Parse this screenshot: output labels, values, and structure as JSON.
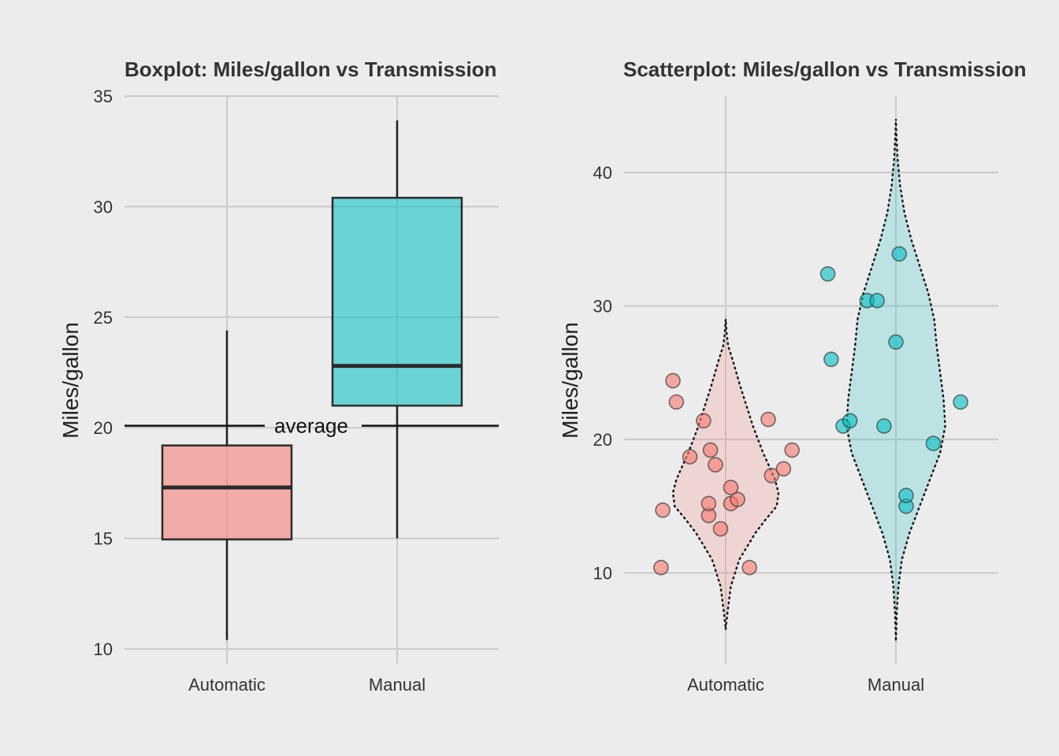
{
  "colors": {
    "background": "#ECECEC",
    "grid": "#CCCCCC",
    "automatic": "#F8766D",
    "manual": "#00BFC4"
  },
  "chart_data": [
    {
      "type": "box",
      "title": "Boxplot: Miles/gallon vs Transmission",
      "xlabel": "",
      "ylabel": "Miles/gallon",
      "categories": [
        "Automatic",
        "Manual"
      ],
      "ylim": [
        10,
        35
      ],
      "yticks": [
        10,
        15,
        20,
        25,
        30,
        35
      ],
      "boxes": [
        {
          "category": "Automatic",
          "min": 10.4,
          "q1": 14.95,
          "median": 17.3,
          "q3": 19.2,
          "max": 24.4,
          "color": "#F8766D"
        },
        {
          "category": "Manual",
          "min": 15.0,
          "q1": 21.0,
          "median": 22.8,
          "q3": 30.4,
          "max": 33.9,
          "color": "#00BFC4"
        }
      ],
      "hline": {
        "value": 20.09,
        "label": "average"
      },
      "grid": true,
      "legend": "none"
    },
    {
      "type": "violin-scatter",
      "title": "Scatterplot: Miles/gallon vs Transmission",
      "xlabel": "",
      "ylabel": "Miles/gallon",
      "categories": [
        "Automatic",
        "Manual"
      ],
      "ylim": [
        5,
        44
      ],
      "yticks": [
        10,
        20,
        30,
        40
      ],
      "violins": [
        {
          "category": "Automatic",
          "color": "#F8766D",
          "profile": [
            [
              5.8,
              0.0
            ],
            [
              7,
              0.02
            ],
            [
              9,
              0.06
            ],
            [
              11,
              0.16
            ],
            [
              13,
              0.35
            ],
            [
              14,
              0.47
            ],
            [
              15,
              0.6
            ],
            [
              16,
              0.62
            ],
            [
              17,
              0.58
            ],
            [
              18,
              0.51
            ],
            [
              19,
              0.44
            ],
            [
              20,
              0.38
            ],
            [
              21,
              0.32
            ],
            [
              22,
              0.27
            ],
            [
              24,
              0.17
            ],
            [
              26,
              0.08
            ],
            [
              27,
              0.03
            ],
            [
              28,
              0.01
            ],
            [
              29,
              0.0
            ]
          ]
        },
        {
          "category": "Manual",
          "color": "#00BFC4",
          "profile": [
            [
              5,
              0.0
            ],
            [
              7,
              0.01
            ],
            [
              9,
              0.03
            ],
            [
              11,
              0.07
            ],
            [
              13,
              0.16
            ],
            [
              15,
              0.28
            ],
            [
              17,
              0.4
            ],
            [
              19,
              0.52
            ],
            [
              21,
              0.58
            ],
            [
              23,
              0.56
            ],
            [
              25,
              0.52
            ],
            [
              27,
              0.48
            ],
            [
              29,
              0.45
            ],
            [
              31,
              0.38
            ],
            [
              33,
              0.28
            ],
            [
              35,
              0.18
            ],
            [
              37,
              0.1
            ],
            [
              39,
              0.05
            ],
            [
              41,
              0.02
            ],
            [
              43,
              0.005
            ],
            [
              44,
              0.0
            ]
          ]
        }
      ],
      "points": [
        {
          "category": "Automatic",
          "jitter": -0.38,
          "y": 10.4
        },
        {
          "category": "Automatic",
          "jitter": 0.14,
          "y": 10.4
        },
        {
          "category": "Automatic",
          "jitter": -0.03,
          "y": 13.3
        },
        {
          "category": "Automatic",
          "jitter": -0.1,
          "y": 14.3
        },
        {
          "category": "Automatic",
          "jitter": -0.37,
          "y": 14.7
        },
        {
          "category": "Automatic",
          "jitter": -0.1,
          "y": 15.2
        },
        {
          "category": "Automatic",
          "jitter": 0.03,
          "y": 15.2
        },
        {
          "category": "Automatic",
          "jitter": 0.07,
          "y": 15.5
        },
        {
          "category": "Automatic",
          "jitter": 0.03,
          "y": 16.4
        },
        {
          "category": "Automatic",
          "jitter": 0.27,
          "y": 17.3
        },
        {
          "category": "Automatic",
          "jitter": 0.34,
          "y": 17.8
        },
        {
          "category": "Automatic",
          "jitter": -0.06,
          "y": 18.1
        },
        {
          "category": "Automatic",
          "jitter": -0.21,
          "y": 18.7
        },
        {
          "category": "Automatic",
          "jitter": -0.09,
          "y": 19.2
        },
        {
          "category": "Automatic",
          "jitter": 0.39,
          "y": 19.2
        },
        {
          "category": "Automatic",
          "jitter": -0.13,
          "y": 21.4
        },
        {
          "category": "Automatic",
          "jitter": 0.25,
          "y": 21.5
        },
        {
          "category": "Automatic",
          "jitter": -0.29,
          "y": 22.8
        },
        {
          "category": "Automatic",
          "jitter": -0.31,
          "y": 24.4
        },
        {
          "category": "Manual",
          "jitter": 0.06,
          "y": 15.0
        },
        {
          "category": "Manual",
          "jitter": 0.06,
          "y": 15.8
        },
        {
          "category": "Manual",
          "jitter": 0.22,
          "y": 19.7
        },
        {
          "category": "Manual",
          "jitter": -0.31,
          "y": 21.0
        },
        {
          "category": "Manual",
          "jitter": -0.07,
          "y": 21.0
        },
        {
          "category": "Manual",
          "jitter": -0.27,
          "y": 21.4
        },
        {
          "category": "Manual",
          "jitter": 0.38,
          "y": 22.8
        },
        {
          "category": "Manual",
          "jitter": -0.38,
          "y": 26.0
        },
        {
          "category": "Manual",
          "jitter": 0.0,
          "y": 27.3
        },
        {
          "category": "Manual",
          "jitter": -0.17,
          "y": 30.4
        },
        {
          "category": "Manual",
          "jitter": -0.11,
          "y": 30.4
        },
        {
          "category": "Manual",
          "jitter": -0.4,
          "y": 32.4
        },
        {
          "category": "Manual",
          "jitter": 0.02,
          "y": 33.9
        }
      ],
      "grid": true,
      "legend": "none"
    }
  ]
}
